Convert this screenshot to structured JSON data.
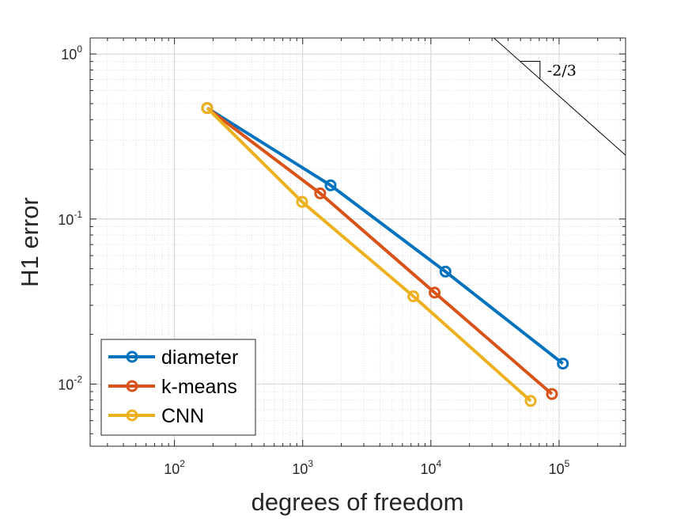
{
  "chart_data": {
    "type": "line",
    "xscale": "log",
    "yscale": "log",
    "xlim": [
      22,
      330000
    ],
    "ylim": [
      0.0042,
      1.25
    ],
    "xlabel": "degrees of freedom",
    "ylabel": "H1 error",
    "x_ticks": [
      {
        "base": "10",
        "exp": "2",
        "value": 100
      },
      {
        "base": "10",
        "exp": "3",
        "value": 1000
      },
      {
        "base": "10",
        "exp": "4",
        "value": 10000
      },
      {
        "base": "10",
        "exp": "5",
        "value": 100000
      }
    ],
    "y_ticks": [
      {
        "base": "10",
        "exp": "-2",
        "value": 0.01
      },
      {
        "base": "10",
        "exp": "-1",
        "value": 0.1
      },
      {
        "base": "10",
        "exp": "0",
        "value": 1
      }
    ],
    "grid": true,
    "minor_grid": true,
    "legend_position": "bottom-left",
    "series": [
      {
        "name": "diameter",
        "color": "#0072BD",
        "x": [
          180,
          1650,
          13000,
          107000
        ],
        "y": [
          0.47,
          0.16,
          0.048,
          0.0133
        ]
      },
      {
        "name": "k-means",
        "color": "#D95319",
        "x": [
          180,
          1370,
          10700,
          88000
        ],
        "y": [
          0.47,
          0.143,
          0.0358,
          0.0087
        ]
      },
      {
        "name": "CNN",
        "color": "#EDB120",
        "x": [
          180,
          990,
          7300,
          60000
        ],
        "y": [
          0.47,
          0.127,
          0.034,
          0.0079
        ]
      }
    ],
    "slope_indicator": {
      "label": "-2/3",
      "line_x": [
        31000,
        330000
      ],
      "line_y": [
        1.25,
        0.2435
      ],
      "triangle_x": [
        50000,
        71000
      ],
      "triangle_y": [
        0.903,
        0.7069
      ]
    }
  }
}
